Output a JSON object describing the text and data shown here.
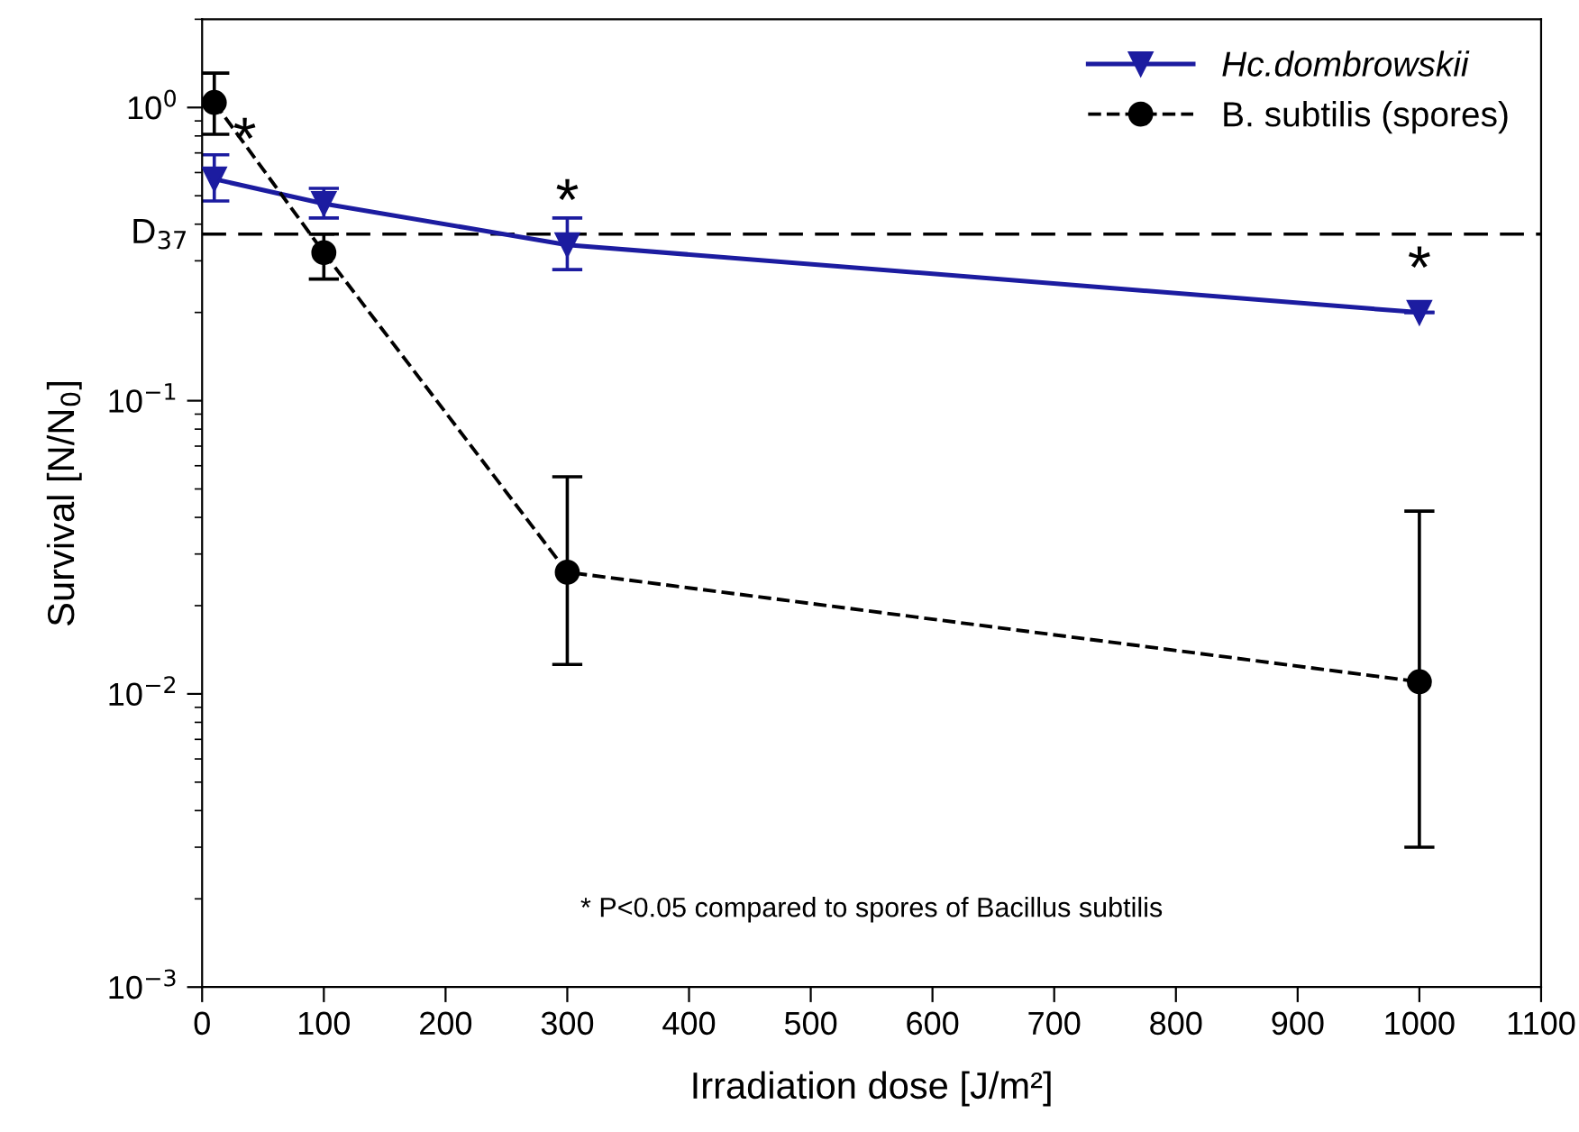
{
  "chart_data": {
    "type": "line",
    "xlabel": "Irradiation dose [J/m²]",
    "ylabel": "Survival [N/N$_{0}$]",
    "log": "y",
    "xlim": [
      0,
      1100
    ],
    "xticks": [
      0,
      100,
      200,
      300,
      400,
      500,
      600,
      700,
      800,
      900,
      1000,
      1100
    ],
    "ylim": [
      0.001,
      2
    ],
    "yticks": [
      {
        "value": 0.001,
        "label": "10$^{−3}$"
      },
      {
        "value": 0.01,
        "label": "10$^{−2}$"
      },
      {
        "value": 0.1,
        "label": "10$^{−1}$"
      },
      {
        "value": 1,
        "label": "10$^{0}$"
      }
    ],
    "grid": false,
    "legend": "top right",
    "series": [
      {
        "name": "Hc.dombrowskii",
        "color": "#1c1ca0",
        "marker": "triangle",
        "line_style": "solid",
        "x": [
          10,
          100,
          300,
          1000
        ],
        "values": [
          0.57,
          0.47,
          0.34,
          0.2
        ],
        "errors": [
          [
            0.48,
            0.69
          ],
          [
            0.42,
            0.53
          ],
          [
            0.28,
            0.42
          ],
          null
        ]
      },
      {
        "name": "B. subtilis (spores)",
        "color": "#000000",
        "marker": "circle",
        "line_style": "dashed",
        "x": [
          10,
          100,
          300,
          1000
        ],
        "values": [
          1.04,
          0.32,
          0.026,
          0.011
        ],
        "errors": [
          [
            0.81,
            1.31
          ],
          [
            0.26,
            0.37
          ],
          [
            0.0126,
            0.055
          ],
          [
            0.003,
            0.042
          ]
        ]
      }
    ],
    "ref_lines": [
      {
        "axis": "y",
        "value": 0.37,
        "label": "D$_{37}$",
        "line_style": "dashed",
        "color": "#000000"
      }
    ],
    "annotations": [
      {
        "text": "*",
        "x": 35,
        "y": 0.55
      },
      {
        "text": "*",
        "x": 300,
        "y": 0.34
      },
      {
        "text": "*",
        "x": 1000,
        "y": 0.2
      },
      "* P<0.05 compared to spores of Bacillus subtilis"
    ]
  }
}
